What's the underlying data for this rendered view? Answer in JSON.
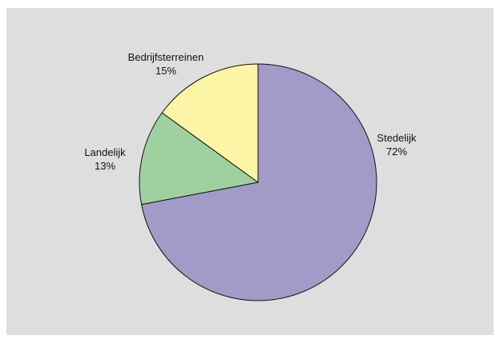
{
  "chart_data": {
    "type": "pie",
    "title": "",
    "start_angle_deg": 0,
    "direction": "clockwise",
    "slices": [
      {
        "label": "Stedelijk",
        "value": 72,
        "pct_label": "72%",
        "color": "#a29bc8"
      },
      {
        "label": "Landelijk",
        "value": 13,
        "pct_label": "13%",
        "color": "#9fd1a0"
      },
      {
        "label": "Bedrijfsterreinen",
        "value": 15,
        "pct_label": "15%",
        "color": "#fdf5a6"
      }
    ],
    "background": "#dedede",
    "legend": "none"
  }
}
